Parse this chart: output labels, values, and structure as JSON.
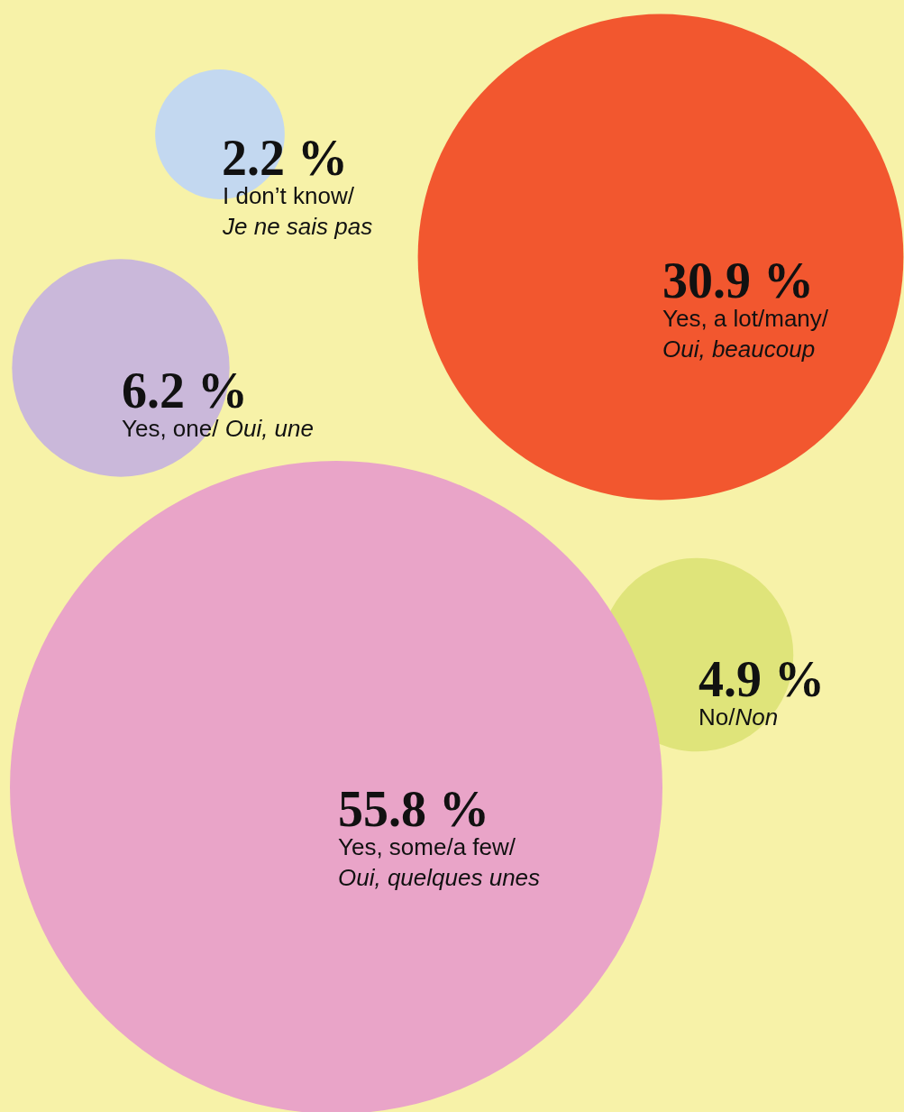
{
  "chart_data": {
    "type": "other",
    "categories": [
      "I don’t know/\nJe ne sais pas",
      "Yes, a lot/many/\nOui, beaucoup",
      "Yes, one/ Oui, une",
      "No/Non",
      "Yes, some/a few/\nOui, quelques unes"
    ],
    "values": [
      2.2,
      30.9,
      6.2,
      4.9,
      55.8
    ],
    "value_labels": [
      "2.2 %",
      "30.9 %",
      "6.2 %",
      "4.9 %",
      "55.8 %"
    ],
    "colors": [
      "#c3d8f0",
      "#f2572f",
      "#cab8da",
      "#dfe47a",
      "#e9a4c8"
    ]
  }
}
